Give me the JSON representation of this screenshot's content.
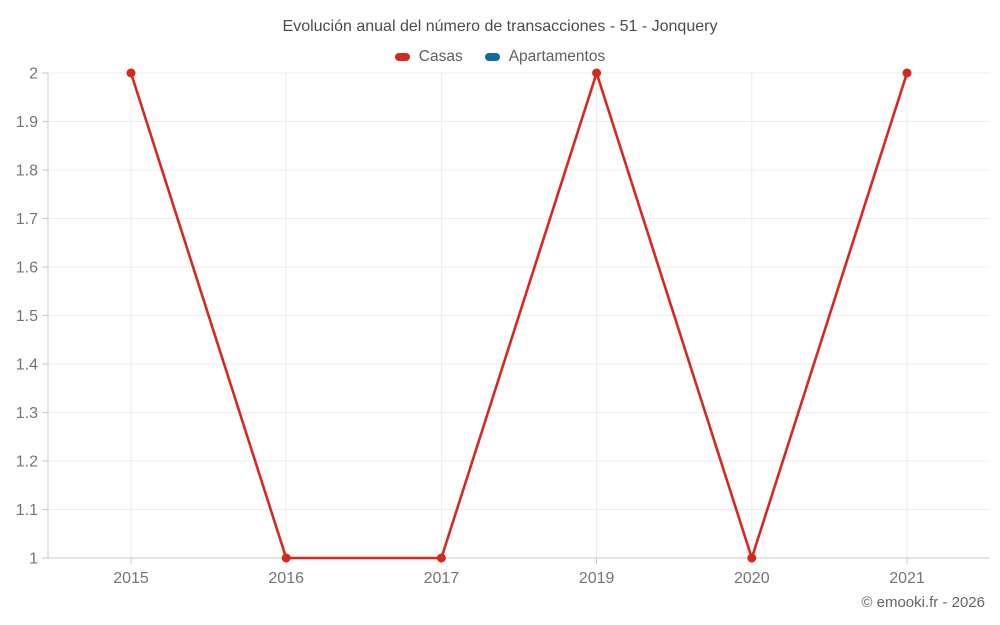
{
  "title": "Evolución anual del número de transacciones - 51 - Jonquery",
  "footer": "© emooki.fr - 2026",
  "chart_data": {
    "type": "line",
    "title": "Evolución anual del número de transacciones - 51 - Jonquery",
    "categories": [
      "2015",
      "2016",
      "2017",
      "2019",
      "2020",
      "2021"
    ],
    "series": [
      {
        "name": "Casas",
        "color": "#d7281e",
        "values": [
          2,
          1,
          1,
          2,
          1,
          2
        ]
      },
      {
        "name": "Apartamentos",
        "color": "#15699b",
        "values": []
      }
    ],
    "xlabel": "",
    "ylabel": "",
    "ylim": [
      1,
      2
    ],
    "ytick_labels": [
      "1",
      "1.1",
      "1.2",
      "1.3",
      "1.4",
      "1.5",
      "1.6",
      "1.7",
      "1.8",
      "1.9",
      "2"
    ],
    "grid": true,
    "legend_position": "top"
  },
  "colors": {
    "grid": "#ededed",
    "axis": "#c9c9c9",
    "tick_text": "#757575",
    "title_text": "#4c4c4c",
    "legend_text": "#5f5f5f",
    "footer_text": "#666666",
    "background": "#ffffff"
  }
}
